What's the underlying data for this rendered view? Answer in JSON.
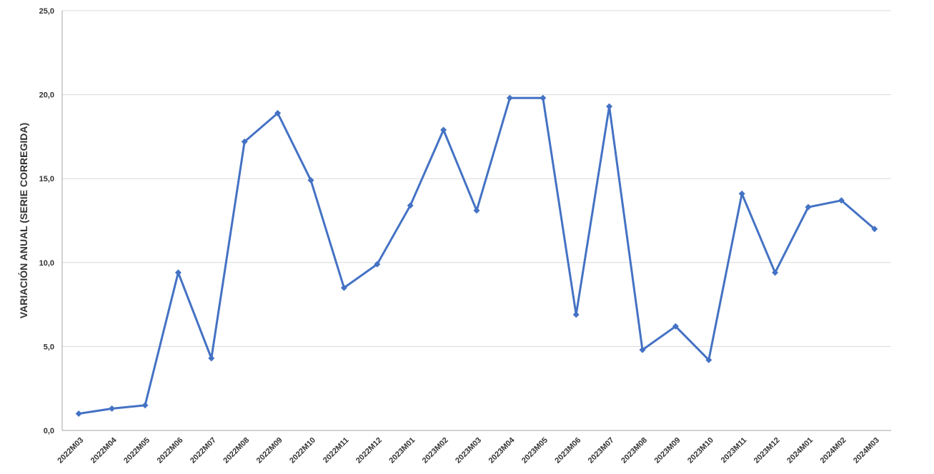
{
  "colors": {
    "line": "#4472C4",
    "grid": "#d9d9d9",
    "axis": "#a6a6a6",
    "text": "#333333"
  },
  "chart_data": {
    "type": "line",
    "title": "",
    "xlabel": "",
    "ylabel": "VARIACIÓN ANUAL (SERIE CORREGIDA)",
    "ylim": [
      0,
      25
    ],
    "yticks": [
      "0,0",
      "5,0",
      "10,0",
      "15,0",
      "20,0",
      "25,0"
    ],
    "grid": true,
    "legend": "none",
    "categories": [
      "2022M03",
      "2022M04",
      "2022M05",
      "2022M06",
      "2022M07",
      "2022M08",
      "2022M09",
      "2022M10",
      "2022M11",
      "2022M12",
      "2023M01",
      "2023M02",
      "2023M03",
      "2023M04",
      "2023M05",
      "2023M06",
      "2023M07",
      "2023M08",
      "2023M09",
      "2023M10",
      "2023M11",
      "2023M12",
      "2024M01",
      "2024M02",
      "2024M03"
    ],
    "series": [
      {
        "values": [
          1.0,
          1.3,
          1.5,
          9.4,
          4.3,
          17.2,
          18.9,
          14.9,
          8.5,
          9.9,
          13.4,
          17.9,
          13.1,
          19.8,
          19.8,
          6.9,
          19.3,
          4.8,
          6.2,
          4.2,
          14.1,
          9.4,
          13.3,
          13.7,
          12.0
        ]
      }
    ]
  }
}
